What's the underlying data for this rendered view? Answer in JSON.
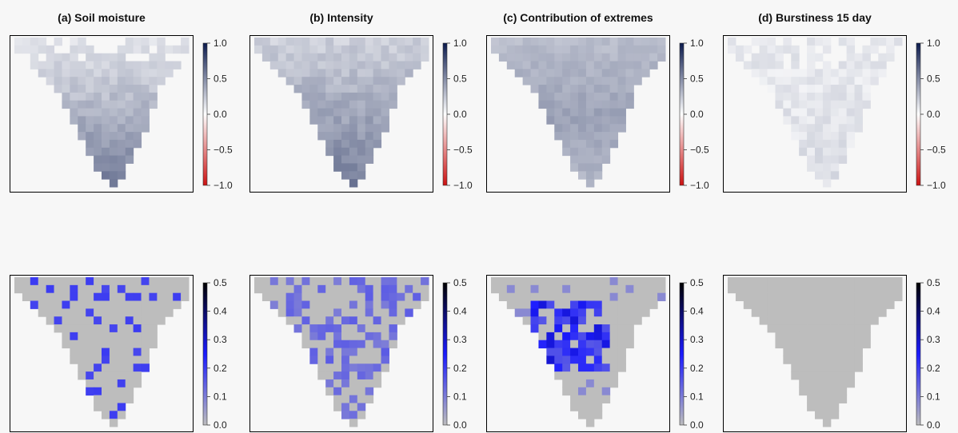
{
  "chart_data": [
    {
      "type": "heatmap",
      "title": "(a) Soil moisture",
      "row": "top",
      "colorbar": {
        "scale": "diverging",
        "min": -1.0,
        "max": 1.0,
        "colors": [
          "#cc1111",
          "#ffffff",
          "#0b1a4d"
        ],
        "ticks": [
          "1.0",
          "0.5",
          "0.0",
          "−0.5",
          "−1.0"
        ],
        "tick_values": [
          1.0,
          0.5,
          0.0,
          -0.5,
          -1.0
        ]
      },
      "pattern": "soil_moisture",
      "values_range": [
        0.0,
        0.6
      ]
    },
    {
      "type": "heatmap",
      "title": "(b) Intensity",
      "row": "top",
      "colorbar": {
        "scale": "diverging",
        "min": -1.0,
        "max": 1.0,
        "colors": [
          "#cc1111",
          "#ffffff",
          "#0b1a4d"
        ],
        "ticks": [
          "1.0",
          "0.5",
          "0.0",
          "−0.5",
          "−1.0"
        ],
        "tick_values": [
          1.0,
          0.5,
          0.0,
          -0.5,
          -1.0
        ]
      },
      "pattern": "intensity",
      "values_range": [
        0.1,
        0.6
      ]
    },
    {
      "type": "heatmap",
      "title": "(c) Contribution of extremes",
      "row": "top",
      "colorbar": {
        "scale": "diverging",
        "min": -1.0,
        "max": 1.0,
        "colors": [
          "#cc1111",
          "#ffffff",
          "#0b1a4d"
        ],
        "ticks": [
          "1.0",
          "0.5",
          "0.0",
          "−0.5",
          "−1.0"
        ],
        "tick_values": [
          1.0,
          0.5,
          0.0,
          -0.5,
          -1.0
        ]
      },
      "pattern": "extremes",
      "values_range": [
        0.1,
        0.5
      ]
    },
    {
      "type": "heatmap",
      "title": "(d) Burstiness 15 day",
      "row": "top",
      "colorbar": {
        "scale": "diverging",
        "min": -1.0,
        "max": 1.0,
        "colors": [
          "#cc1111",
          "#ffffff",
          "#0b1a4d"
        ],
        "ticks": [
          "1.0",
          "0.5",
          "0.0",
          "−0.5",
          "−1.0"
        ],
        "tick_values": [
          1.0,
          0.5,
          0.0,
          -0.5,
          -1.0
        ]
      },
      "pattern": "burstiness",
      "values_range": [
        0.0,
        0.3
      ]
    },
    {
      "type": "heatmap",
      "title": "",
      "row": "bottom",
      "colorbar": {
        "scale": "sequential",
        "min": 0.0,
        "max": 0.5,
        "colors": [
          "#bdbdbd",
          "#1a1aff",
          "#000000"
        ],
        "ticks": [
          "0.5",
          "0.4",
          "0.3",
          "0.2",
          "0.1",
          "0.0"
        ],
        "tick_values": [
          0.5,
          0.4,
          0.3,
          0.2,
          0.1,
          0.0
        ]
      },
      "pattern": "soil_moisture_sig",
      "values_range": [
        0.0,
        0.2
      ]
    },
    {
      "type": "heatmap",
      "title": "",
      "row": "bottom",
      "colorbar": {
        "scale": "sequential",
        "min": 0.0,
        "max": 0.5,
        "colors": [
          "#bdbdbd",
          "#1a1aff",
          "#000000"
        ],
        "ticks": [
          "0.5",
          "0.4",
          "0.3",
          "0.2",
          "0.1",
          "0.0"
        ],
        "tick_values": [
          0.5,
          0.4,
          0.3,
          0.2,
          0.1,
          0.0
        ]
      },
      "pattern": "intensity_sig",
      "values_range": [
        0.0,
        0.35
      ]
    },
    {
      "type": "heatmap",
      "title": "",
      "row": "bottom",
      "colorbar": {
        "scale": "sequential",
        "min": 0.0,
        "max": 0.5,
        "colors": [
          "#bdbdbd",
          "#1a1aff",
          "#000000"
        ],
        "ticks": [
          "0.5",
          "0.4",
          "0.3",
          "0.2",
          "0.1",
          "0.0"
        ],
        "tick_values": [
          0.5,
          0.4,
          0.3,
          0.2,
          0.1,
          0.0
        ]
      },
      "pattern": "extremes_sig",
      "values_range": [
        0.0,
        0.35
      ]
    },
    {
      "type": "heatmap",
      "title": "",
      "row": "bottom",
      "colorbar": {
        "scale": "sequential",
        "min": 0.0,
        "max": 0.5,
        "colors": [
          "#bdbdbd",
          "#1a1aff",
          "#000000"
        ],
        "ticks": [
          "0.5",
          "0.4",
          "0.3",
          "0.2",
          "0.1",
          "0.0"
        ],
        "tick_values": [
          0.5,
          0.4,
          0.3,
          0.2,
          0.1,
          0.0
        ]
      },
      "pattern": "burstiness_sig",
      "values_range": [
        0.0,
        0.0
      ]
    }
  ]
}
